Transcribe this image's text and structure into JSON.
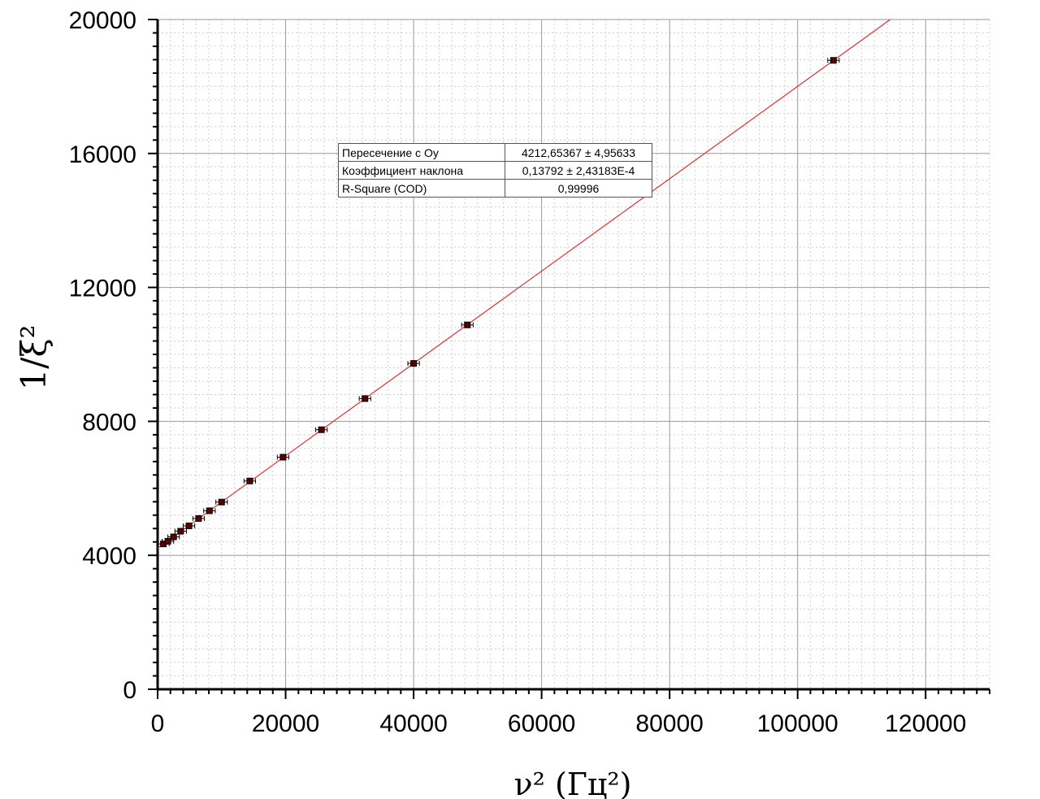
{
  "chart_data": {
    "type": "scatter",
    "xlabel": "ν² (Гц²)",
    "ylabel": "1/ξ²",
    "xlim": [
      0,
      130000
    ],
    "ylim": [
      0,
      20000
    ],
    "xticks": [
      0,
      20000,
      40000,
      60000,
      80000,
      100000,
      120000
    ],
    "yticks": [
      0,
      4000,
      8000,
      12000,
      16000,
      20000
    ],
    "grid": true,
    "points": [
      {
        "x": 900,
        "y": 4340
      },
      {
        "x": 1600,
        "y": 4420
      },
      {
        "x": 2500,
        "y": 4550
      },
      {
        "x": 3600,
        "y": 4720
      },
      {
        "x": 4900,
        "y": 4880
      },
      {
        "x": 6400,
        "y": 5100
      },
      {
        "x": 8100,
        "y": 5330
      },
      {
        "x": 10000,
        "y": 5590
      },
      {
        "x": 14400,
        "y": 6220
      },
      {
        "x": 19600,
        "y": 6930
      },
      {
        "x": 25600,
        "y": 7750
      },
      {
        "x": 32400,
        "y": 8680
      },
      {
        "x": 40000,
        "y": 9730
      },
      {
        "x": 48400,
        "y": 10880
      },
      {
        "x": 105600,
        "y": 18780
      }
    ],
    "x_error": 900,
    "y_error": 60,
    "fit": {
      "intercept": 4212.65367,
      "slope": 0.13792,
      "color": "#e03030"
    },
    "marker_color": "#5a0000"
  },
  "fit_table": [
    {
      "label": "Пересечение с Oy",
      "value": "4212,65367 ± 4,95633"
    },
    {
      "label": "Коэффициент наклона",
      "value": "0,13792 ± 2,43183E-4"
    },
    {
      "label": "R-Square (COD)",
      "value": "0,99996"
    }
  ]
}
